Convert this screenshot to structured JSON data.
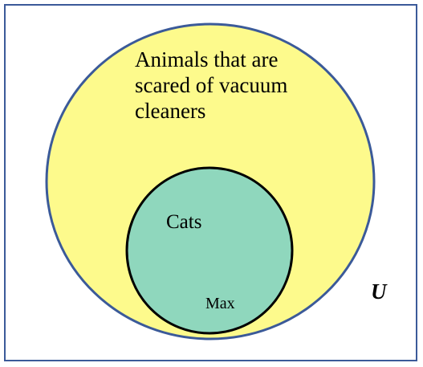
{
  "diagram": {
    "type": "venn",
    "universe": {
      "label": "U",
      "fill": "#ffffff",
      "border": "#3b5a99"
    },
    "outer_set": {
      "label_lines": [
        "Animals that are",
        "scared of vacuum",
        "cleaners"
      ],
      "fill": "#fdfa8c",
      "border": "#3b5a99"
    },
    "inner_set": {
      "label": "Cats",
      "fill": "#8fd7bd",
      "border": "#000000"
    },
    "members": [
      {
        "label": "Max",
        "set": "inner_set"
      }
    ]
  }
}
